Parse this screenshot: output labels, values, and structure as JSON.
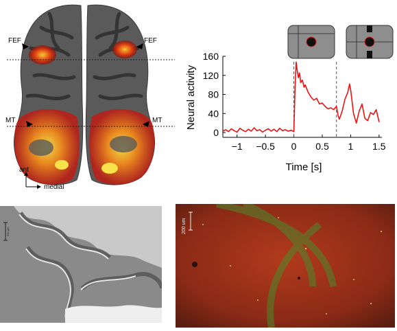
{
  "brain_panel": {
    "labels": {
      "fef_left": "FEF",
      "fef_right": "FEF",
      "mt_left": "MT",
      "mt_right": "MT",
      "axis_ant": "ant",
      "axis_medial": "medial"
    }
  },
  "chart_data": {
    "type": "line",
    "title": "",
    "xlabel": "Time [s]",
    "ylabel": "Neural activity",
    "xlim": [
      -1.25,
      1.55
    ],
    "ylim": [
      -10,
      160
    ],
    "xticks": [
      -1,
      -0.5,
      0,
      0.5,
      1,
      1.5
    ],
    "xtick_labels": [
      "−1",
      "−0.5",
      "0",
      "0.5",
      "1",
      "1.5"
    ],
    "yticks": [
      0,
      40,
      80,
      120,
      160
    ],
    "ytick_labels": [
      "0",
      "40",
      "80",
      "120",
      "160"
    ],
    "event_lines_x": [
      0,
      0.75
    ],
    "series": [
      {
        "color": "#ee1111",
        "x": [
          -1.25,
          -1.2,
          -1.15,
          -1.1,
          -1.05,
          -1.0,
          -0.95,
          -0.9,
          -0.85,
          -0.8,
          -0.75,
          -0.7,
          -0.65,
          -0.6,
          -0.55,
          -0.5,
          -0.45,
          -0.4,
          -0.35,
          -0.3,
          -0.25,
          -0.2,
          -0.15,
          -0.1,
          -0.05,
          0.0,
          0.02,
          0.04,
          0.06,
          0.08,
          0.1,
          0.12,
          0.15,
          0.18,
          0.2,
          0.25,
          0.3,
          0.35,
          0.4,
          0.45,
          0.5,
          0.55,
          0.6,
          0.65,
          0.7,
          0.75,
          0.78,
          0.8,
          0.85,
          0.9,
          0.95,
          0.98,
          1.0,
          1.03,
          1.05,
          1.1,
          1.15,
          1.2,
          1.25,
          1.3,
          1.35,
          1.4,
          1.45,
          1.5
        ],
        "y": [
          3,
          6,
          2,
          8,
          4,
          1,
          9,
          5,
          2,
          7,
          3,
          10,
          4,
          6,
          1,
          5,
          8,
          3,
          7,
          2,
          9,
          4,
          6,
          3,
          5,
          2,
          90,
          148,
          130,
          115,
          125,
          105,
          110,
          95,
          100,
          85,
          75,
          68,
          72,
          60,
          62,
          55,
          50,
          52,
          48,
          55,
          35,
          28,
          45,
          70,
          85,
          102,
          90,
          60,
          40,
          20,
          45,
          60,
          30,
          25,
          42,
          38,
          48,
          22
        ]
      }
    ]
  },
  "stimulus_icons": [
    "fixation-target-icon",
    "fixation-with-bars-icon"
  ],
  "histology": {
    "scale_label": "500 µm"
  },
  "fluorescence": {
    "scale_label": "200 um"
  }
}
